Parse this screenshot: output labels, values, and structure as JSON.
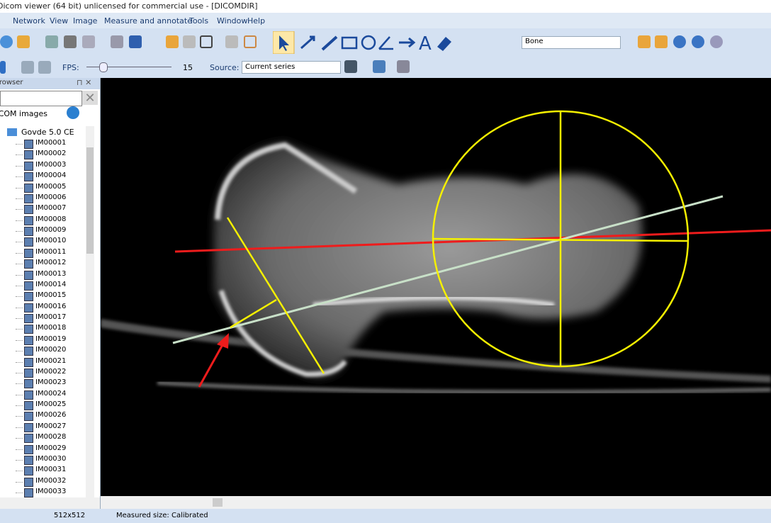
{
  "window": {
    "title": "Dicom viewer (64 bit) unlicensed for commercial use - [DICOMDIR]"
  },
  "menu": [
    "Network",
    "View",
    "Image",
    "Measure and annotate",
    "Tools",
    "Window",
    "Help"
  ],
  "toolbar": {
    "preset": "Bone",
    "fps_label": "FPS:",
    "fps": "15",
    "source_label": "Source:",
    "source": "Current series"
  },
  "browser": {
    "title": "Browser",
    "filter": "DICOM images",
    "root": "Govde 5.0 CE",
    "items": [
      "IM00001",
      "IM00002",
      "IM00003",
      "IM00004",
      "IM00005",
      "IM00006",
      "IM00007",
      "IM00008",
      "IM00009",
      "IM00010",
      "IM00011",
      "IM00012",
      "IM00013",
      "IM00014",
      "IM00015",
      "IM00016",
      "IM00017",
      "IM00018",
      "IM00019",
      "IM00020",
      "IM00021",
      "IM00022",
      "IM00023",
      "IM00024",
      "IM00025",
      "IM00026",
      "IM00027",
      "IM00028",
      "IM00029",
      "IM00030",
      "IM00031",
      "IM00032",
      "IM00033"
    ]
  },
  "status": {
    "size": "512x512",
    "measured": "Measured size: Calibrated"
  }
}
